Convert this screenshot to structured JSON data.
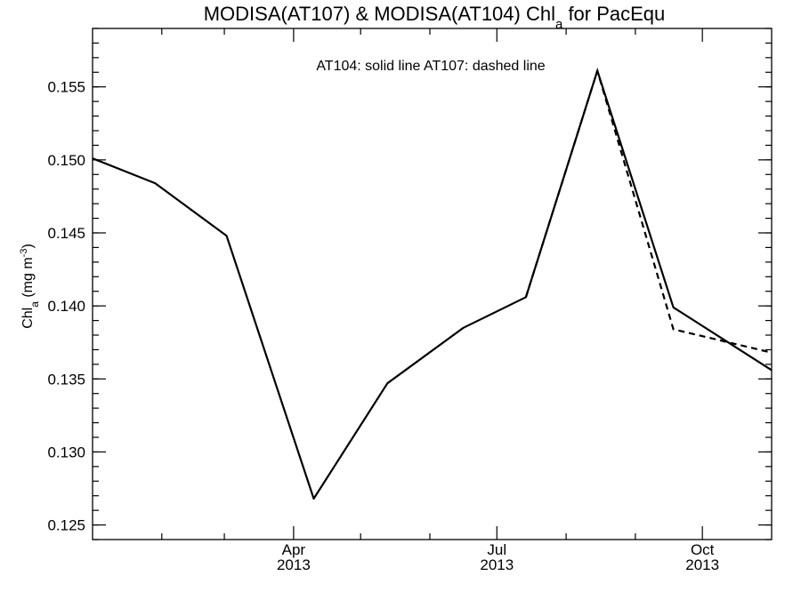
{
  "chart_data": {
    "type": "line",
    "title_main": "MODISA(AT107) & MODISA(AT104)  Chl",
    "title_sub": "a",
    "title_tail": " for PacEqu",
    "ylabel_main": "Chl",
    "ylabel_sub": "a",
    "ylabel_unit": " (mg m",
    "ylabel_sup": "-3",
    "ylabel_close": ")",
    "annotation": "AT104: solid line   AT107: dashed line",
    "ylim": [
      0.124,
      0.159
    ],
    "y_ticks": [
      "0.125",
      "0.130",
      "0.135",
      "0.140",
      "0.145",
      "0.150",
      "0.155"
    ],
    "y_minor_step": 0.001,
    "xlim": [
      "2013-01-01",
      "2013-11-01"
    ],
    "x_major_ticks": [
      {
        "date": "2013-04-01",
        "month": "Apr",
        "year": "2013"
      },
      {
        "date": "2013-07-01",
        "month": "Jul",
        "year": "2013"
      },
      {
        "date": "2013-10-01",
        "month": "Oct",
        "year": "2013"
      }
    ],
    "x_minor_ticks": [
      "2013-02-01",
      "2013-03-01",
      "2013-05-01",
      "2013-06-01",
      "2013-08-01",
      "2013-09-01"
    ],
    "series": [
      {
        "style": "solid",
        "points": [
          [
            "2013-01-01",
            0.1501
          ],
          [
            "2013-01-29",
            0.1484
          ],
          [
            "2013-03-02",
            0.1448
          ],
          [
            "2013-04-10",
            0.1268
          ],
          [
            "2013-05-13",
            0.1347
          ],
          [
            "2013-06-16",
            0.1385
          ],
          [
            "2013-07-14",
            0.1406
          ],
          [
            "2013-08-15",
            0.1561
          ],
          [
            "2013-09-18",
            0.1399
          ],
          [
            "2013-11-01",
            0.1356
          ]
        ]
      },
      {
        "style": "dashed",
        "points": [
          [
            "2013-07-14",
            0.1406
          ],
          [
            "2013-08-15",
            0.1561
          ],
          [
            "2013-09-18",
            0.1384
          ],
          [
            "2013-11-01",
            0.1368
          ]
        ]
      }
    ]
  }
}
